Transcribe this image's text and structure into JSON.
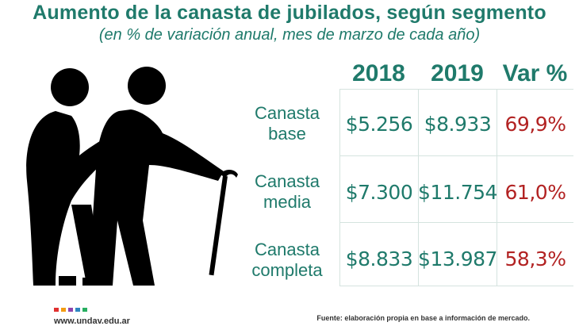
{
  "title": "Aumento de la canasta de jubilados, según segmento",
  "subtitle": "(en % de variación anual, mes de marzo de cada año)",
  "chart_data": {
    "type": "table",
    "columns": [
      "2018",
      "2019",
      "Var %"
    ],
    "rows": [
      {
        "label_lines": [
          "Canasta",
          "base"
        ],
        "values": [
          "$5.256",
          "$8.933",
          "69,9%"
        ]
      },
      {
        "label_lines": [
          "Canasta",
          "media"
        ],
        "values": [
          "$7.300",
          "$11.754",
          "61,0%"
        ]
      },
      {
        "label_lines": [
          "Canasta",
          "completa"
        ],
        "values": [
          "$8.833",
          "$13.987",
          "58,3%"
        ]
      }
    ]
  },
  "footer": {
    "url": "www.undav.edu.ar",
    "source": "Fuente: elaboración propia en base a información de mercado."
  },
  "colors": {
    "accent": "#1f7a6b",
    "variation": "#b22222",
    "logo": [
      "#e0302f",
      "#f39c12",
      "#8e44ad",
      "#2e86c1",
      "#27ae60"
    ]
  },
  "icons": {
    "figure": "elderly-couple-with-cane-icon"
  }
}
